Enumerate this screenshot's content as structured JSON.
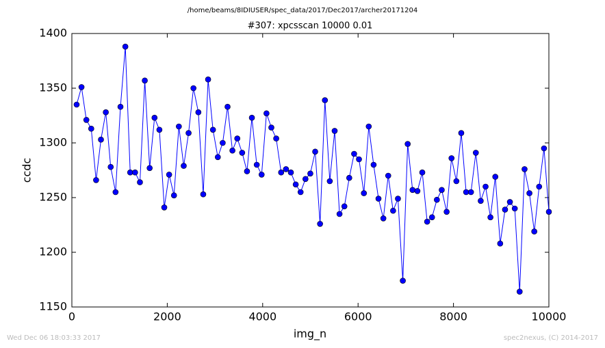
{
  "chart_data": {
    "type": "line",
    "suptitle": "/home/beams/8IDIUSER/spec_data/2017/Dec2017/archer20171204",
    "title": "#307: xpcsscan 10000 0.01",
    "x_label": "img_n",
    "y_label": "ccdc",
    "footer_left": "Wed Dec 06 18:03:33 2017",
    "footer_right": "spec2nexus, (C) 2014-2017",
    "xlim": [
      0,
      10000
    ],
    "ylim": [
      1150,
      1400
    ],
    "xticks": [
      0,
      2000,
      4000,
      6000,
      8000,
      10000
    ],
    "yticks": [
      1150,
      1200,
      1250,
      1300,
      1350,
      1400
    ],
    "grid": false,
    "x": [
      100,
      202,
      304,
      406,
      508,
      610,
      712,
      814,
      916,
      1019,
      1121,
      1223,
      1325,
      1427,
      1529,
      1631,
      1733,
      1835,
      1937,
      2039,
      2141,
      2243,
      2345,
      2447,
      2549,
      2652,
      2754,
      2856,
      2958,
      3060,
      3162,
      3264,
      3366,
      3468,
      3570,
      3672,
      3774,
      3876,
      3978,
      4080,
      4182,
      4284,
      4387,
      4489,
      4591,
      4693,
      4795,
      4897,
      4999,
      5101,
      5203,
      5305,
      5407,
      5509,
      5611,
      5713,
      5815,
      5917,
      6019,
      6122,
      6224,
      6326,
      6428,
      6530,
      6632,
      6734,
      6836,
      6938,
      7040,
      7142,
      7244,
      7346,
      7448,
      7550,
      7652,
      7754,
      7857,
      7959,
      8061,
      8163,
      8265,
      8367,
      8469,
      8571,
      8673,
      8775,
      8877,
      8979,
      9081,
      9183,
      9285,
      9387,
      9490,
      9592,
      9694,
      9796,
      9898,
      10000
    ],
    "series": [
      {
        "color": "#0000ff",
        "values": [
          1335,
          1351,
          1321,
          1313,
          1266,
          1303,
          1328,
          1278,
          1255,
          1333,
          1388,
          1273,
          1273,
          1264,
          1357,
          1277,
          1323,
          1312,
          1241,
          1271,
          1252,
          1315,
          1279,
          1309,
          1350,
          1328,
          1253,
          1358,
          1312,
          1287,
          1300,
          1333,
          1293,
          1304,
          1291,
          1274,
          1323,
          1280,
          1271,
          1327,
          1314,
          1304,
          1273,
          1276,
          1273,
          1262,
          1255,
          1267,
          1272,
          1292,
          1226,
          1339,
          1265,
          1311,
          1235,
          1242,
          1268,
          1290,
          1285,
          1254,
          1315,
          1280,
          1249,
          1231,
          1270,
          1238,
          1249,
          1174,
          1299,
          1257,
          1256,
          1273,
          1228,
          1232,
          1248,
          1257,
          1237,
          1286,
          1265,
          1309,
          1255,
          1255,
          1291,
          1247,
          1260,
          1232,
          1269,
          1208,
          1239,
          1246,
          1240,
          1164,
          1276,
          1254,
          1219,
          1260,
          1295,
          1237
        ]
      }
    ]
  }
}
